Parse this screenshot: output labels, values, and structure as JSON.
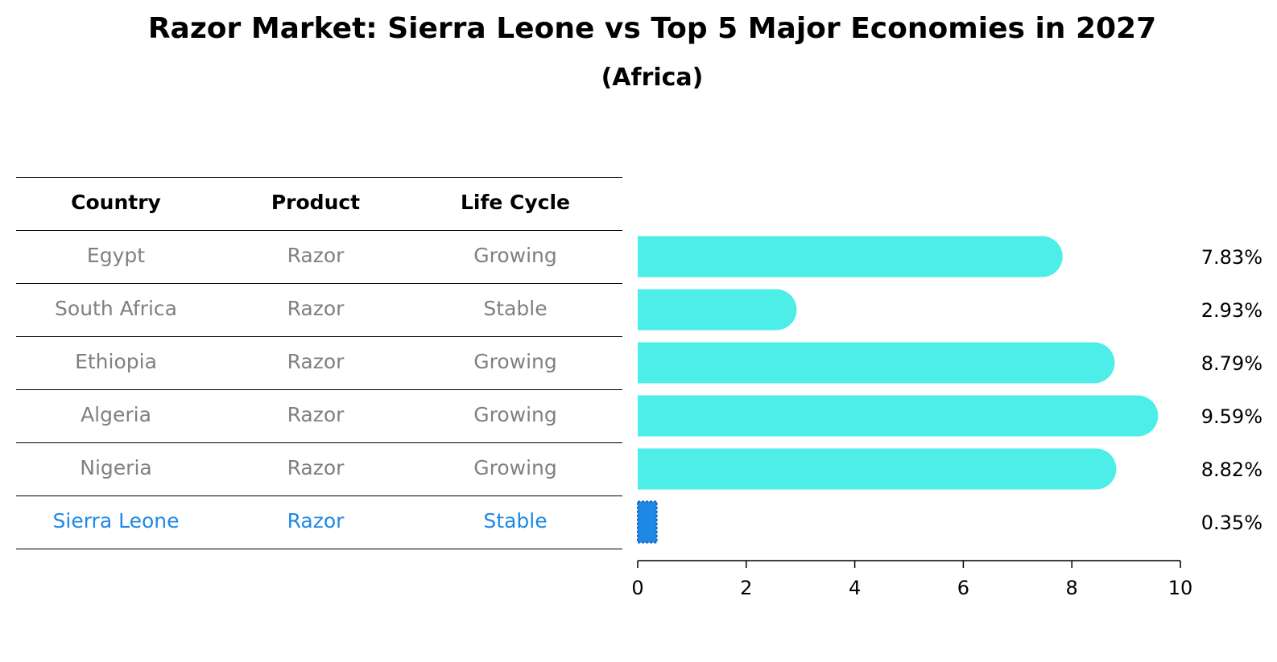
{
  "title": "Razor Market: Sierra Leone vs Top 5 Major Economies in 2027",
  "subtitle": "(Africa)",
  "table": {
    "headers": [
      "Country",
      "Product",
      "Life Cycle"
    ],
    "rows": [
      [
        "Egypt",
        "Razor",
        "Growing"
      ],
      [
        "South Africa",
        "Razor",
        "Stable"
      ],
      [
        "Ethiopia",
        "Razor",
        "Growing"
      ],
      [
        "Algeria",
        "Razor",
        "Growing"
      ],
      [
        "Nigeria",
        "Razor",
        "Growing"
      ],
      [
        "Sierra Leone",
        "Razor",
        "Stable"
      ]
    ],
    "highlight_row": 5
  },
  "colors": {
    "bar": "#4deee8",
    "highlight_bar": "#1e88e5",
    "muted_text": "#808080",
    "highlight_text": "#1e88e5"
  },
  "chart_data": {
    "type": "bar",
    "orientation": "horizontal",
    "categories": [
      "Egypt",
      "South Africa",
      "Ethiopia",
      "Algeria",
      "Nigeria",
      "Sierra Leone"
    ],
    "values": [
      7.83,
      2.93,
      8.79,
      9.59,
      8.82,
      0.35
    ],
    "value_labels": [
      "7.83%",
      "2.93%",
      "8.79%",
      "9.59%",
      "8.82%",
      "0.35%"
    ],
    "xlim": [
      0,
      10
    ],
    "xticks": [
      "0",
      "2",
      "4",
      "6",
      "8",
      "10"
    ],
    "xlabel": "",
    "ylabel": "",
    "grid": false,
    "highlight_category": "Sierra Leone"
  }
}
